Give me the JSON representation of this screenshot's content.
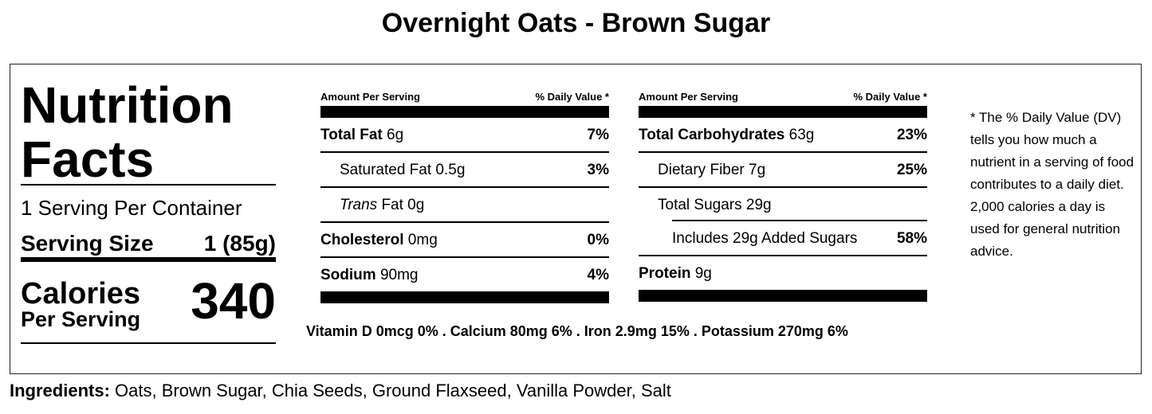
{
  "title": "Overnight Oats - Brown Sugar",
  "header": {
    "line1": "Nutrition",
    "line2": "Facts"
  },
  "servings_per_container": "1 Serving Per Container",
  "serving_size": {
    "label": "Serving Size",
    "value": "1 (85g)"
  },
  "calories": {
    "label": "Calories",
    "sub": "Per Serving",
    "value": "340"
  },
  "columns": [
    {
      "amount_header": "Amount Per Serving",
      "dv_header": "% Daily Value *",
      "rows": [
        {
          "name": "Total Fat",
          "amount": " 6g",
          "dv": "7%"
        },
        {
          "name": "Saturated Fat 0.5g",
          "dv": "3%"
        },
        {
          "name_italic": "Trans",
          "name": " Fat 0g",
          "dv": ""
        },
        {
          "name": "Cholesterol",
          "amount": " 0mg",
          "dv": "0%"
        },
        {
          "name": "Sodium",
          "amount": " 90mg",
          "dv": "4%"
        }
      ]
    },
    {
      "amount_header": "Amount Per Serving",
      "dv_header": "% Daily Value *",
      "rows": [
        {
          "name": "Total Carbohydrates",
          "amount": " 63g",
          "dv": "23%"
        },
        {
          "name": "Dietary Fiber 7g",
          "dv": "25%"
        },
        {
          "name": "Total Sugars 29g",
          "dv": ""
        },
        {
          "name": "Includes 29g Added Sugars",
          "dv": "58%"
        },
        {
          "name": "Protein",
          "amount": " 9g",
          "dv": ""
        }
      ]
    }
  ],
  "vitamins": "Vitamin D 0mcg 0% . Calcium 80mg 6% . Iron 2.9mg 15% . Potassium 270mg 6%",
  "footnote": "* The % Daily Value (DV) tells you how much a nutrient in a serving of food contributes to a daily diet. 2,000 calories a day is used for general nutrition advice.",
  "ingredients": {
    "label": "Ingredients:",
    "text": " Oats, Brown Sugar, Chia Seeds, Ground Flaxseed, Vanilla Powder, Salt"
  }
}
